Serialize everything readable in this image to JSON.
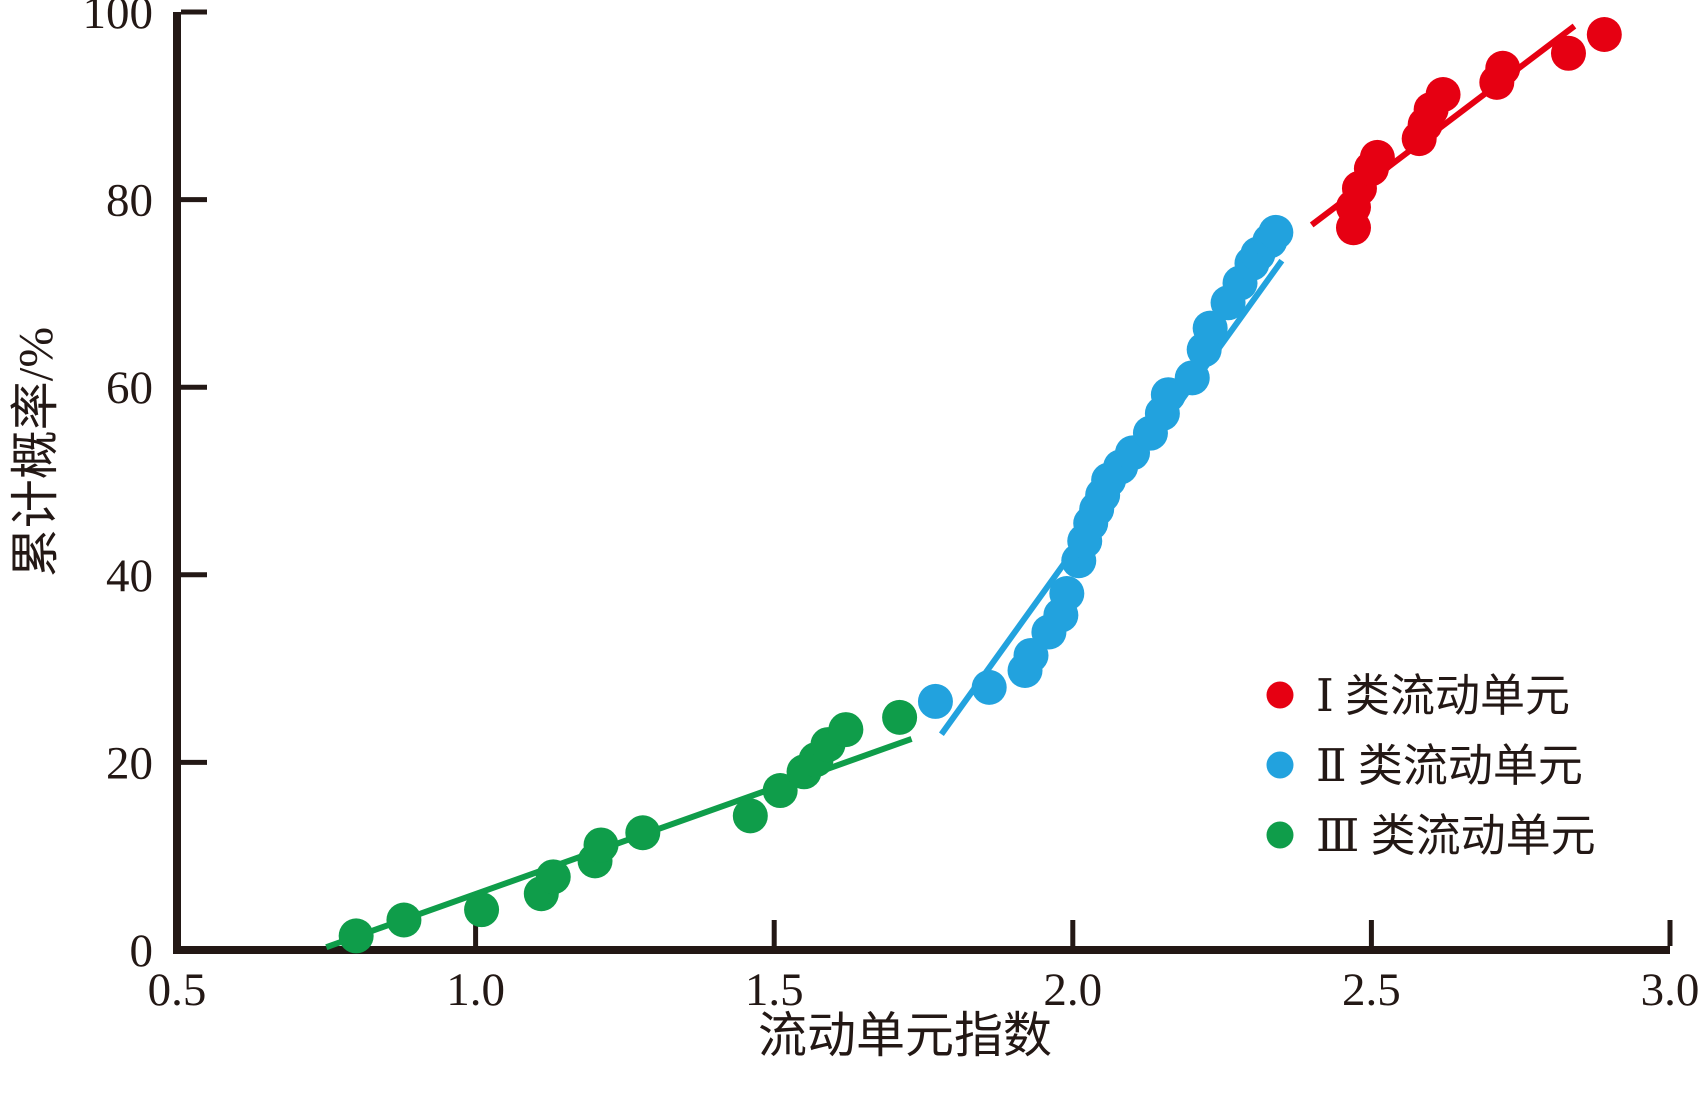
{
  "figure": {
    "background": "#ffffff",
    "axis_color": "#231815"
  },
  "chart_data": {
    "type": "scatter",
    "title": "",
    "xlabel": "流动单元指数",
    "ylabel": "累计概率/%",
    "xlim": [
      0.5,
      3.0
    ],
    "ylim": [
      0,
      100
    ],
    "xtick_labels": [
      "0.5",
      "1.0",
      "1.5",
      "2.0",
      "2.5",
      "3.0"
    ],
    "ytick_labels": [
      "0",
      "20",
      "40",
      "60",
      "80",
      "100"
    ],
    "grid": false,
    "legend_position": "inside-right-lower",
    "series": [
      {
        "name": "Ⅰ 类流动单元",
        "color": "#e60012",
        "marker": "circle",
        "points": [
          [
            2.47,
            77.0
          ],
          [
            2.47,
            79.2
          ],
          [
            2.48,
            81.2
          ],
          [
            2.5,
            83.3
          ],
          [
            2.51,
            84.5
          ],
          [
            2.58,
            86.5
          ],
          [
            2.59,
            88.0
          ],
          [
            2.6,
            89.6
          ],
          [
            2.62,
            91.2
          ],
          [
            2.71,
            92.5
          ],
          [
            2.72,
            94.0
          ],
          [
            2.83,
            95.6
          ],
          [
            2.89,
            97.6
          ]
        ],
        "trendline": [
          [
            2.4,
            77.3
          ],
          [
            2.84,
            98.5
          ]
        ]
      },
      {
        "name": "Ⅱ 类流动单元",
        "color": "#22a2de",
        "marker": "circle",
        "points": [
          [
            1.77,
            26.5
          ],
          [
            1.86,
            28.0
          ],
          [
            1.92,
            29.8
          ],
          [
            1.93,
            31.4
          ],
          [
            1.96,
            33.9
          ],
          [
            1.98,
            35.7
          ],
          [
            1.99,
            38.0
          ],
          [
            2.01,
            41.5
          ],
          [
            2.02,
            43.6
          ],
          [
            2.03,
            45.5
          ],
          [
            2.04,
            47.0
          ],
          [
            2.05,
            48.5
          ],
          [
            2.06,
            50.1
          ],
          [
            2.08,
            51.5
          ],
          [
            2.1,
            53.0
          ],
          [
            2.13,
            55.1
          ],
          [
            2.15,
            57.2
          ],
          [
            2.16,
            59.2
          ],
          [
            2.2,
            61.0
          ],
          [
            2.22,
            64.0
          ],
          [
            2.23,
            66.3
          ],
          [
            2.26,
            69.0
          ],
          [
            2.28,
            71.1
          ],
          [
            2.3,
            73.2
          ],
          [
            2.31,
            74.2
          ],
          [
            2.33,
            75.6
          ],
          [
            2.34,
            76.5
          ]
        ],
        "trendline": [
          [
            1.78,
            23.0
          ],
          [
            2.35,
            73.5
          ]
        ]
      },
      {
        "name": "Ⅲ 类流动单元",
        "color": "#0f9d4a",
        "marker": "circle",
        "points": [
          [
            0.8,
            1.5
          ],
          [
            0.88,
            3.2
          ],
          [
            1.01,
            4.3
          ],
          [
            1.11,
            6.0
          ],
          [
            1.13,
            7.8
          ],
          [
            1.2,
            9.5
          ],
          [
            1.21,
            11.2
          ],
          [
            1.28,
            12.5
          ],
          [
            1.46,
            14.3
          ],
          [
            1.51,
            17.0
          ],
          [
            1.55,
            19.0
          ],
          [
            1.57,
            20.3
          ],
          [
            1.59,
            21.9
          ],
          [
            1.62,
            23.5
          ],
          [
            1.71,
            24.8
          ]
        ],
        "trendline": [
          [
            0.75,
            0.3
          ],
          [
            1.73,
            22.5
          ]
        ]
      }
    ]
  }
}
